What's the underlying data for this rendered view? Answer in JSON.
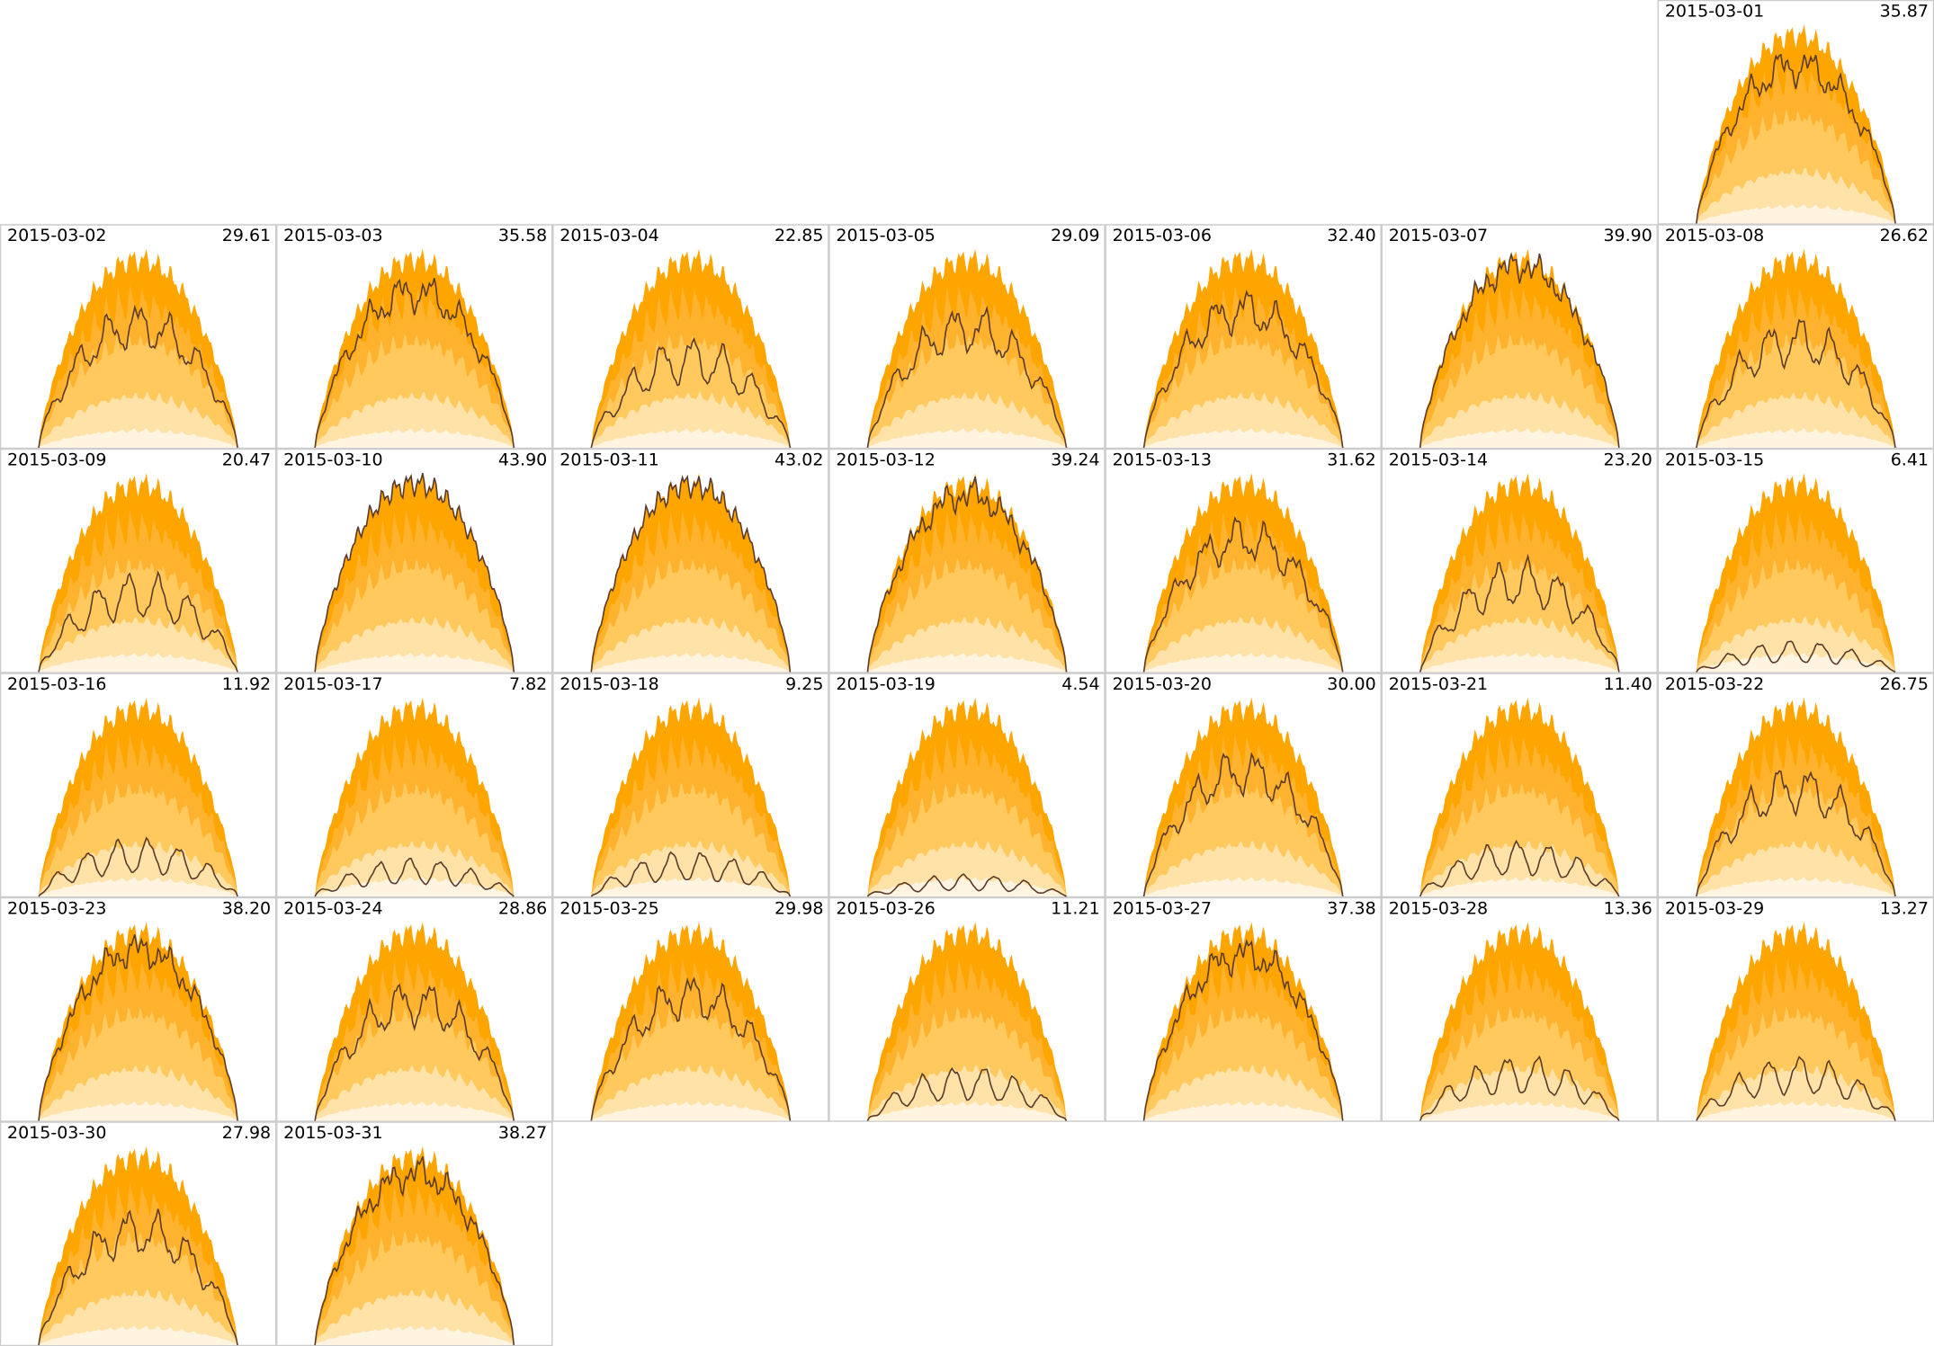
{
  "chart_data": {
    "type": "calendar",
    "dates": [
      "2015-03-01",
      "2015-03-02",
      "2015-03-03",
      "2015-03-04",
      "2015-03-05",
      "2015-03-06",
      "2015-03-07",
      "2015-03-08",
      "2015-03-09",
      "2015-03-10",
      "2015-03-11",
      "2015-03-12",
      "2015-03-13",
      "2015-03-14",
      "2015-03-15",
      "2015-03-16",
      "2015-03-17",
      "2015-03-18",
      "2015-03-19",
      "2015-03-20",
      "2015-03-21",
      "2015-03-22",
      "2015-03-23",
      "2015-03-24",
      "2015-03-25",
      "2015-03-26",
      "2015-03-27",
      "2015-03-28",
      "2015-03-29",
      "2015-03-30",
      "2015-03-31"
    ],
    "values": [
      35.87,
      29.61,
      35.58,
      22.85,
      29.09,
      32.4,
      39.9,
      26.62,
      20.47,
      43.9,
      43.02,
      39.24,
      31.62,
      23.2,
      6.41,
      11.92,
      7.82,
      9.25,
      4.54,
      30.0,
      11.4,
      26.75,
      38.2,
      28.86,
      29.98,
      11.21,
      37.38,
      13.36,
      13.27,
      27.98,
      38.27
    ],
    "value_labels": [
      "35.87",
      "29.61",
      "35.58",
      "22.85",
      "29.09",
      "32.40",
      "39.90",
      "26.62",
      "20.47",
      "43.90",
      "43.02",
      "39.24",
      "31.62",
      "23.20",
      "6.41",
      "11.92",
      "7.82",
      "9.25",
      "4.54",
      "30.00",
      "11.40",
      "26.75",
      "38.20",
      "28.86",
      "29.98",
      "11.21",
      "37.38",
      "13.36",
      "13.27",
      "27.98",
      "38.27"
    ],
    "color": "#5a3a2a"
  }
}
